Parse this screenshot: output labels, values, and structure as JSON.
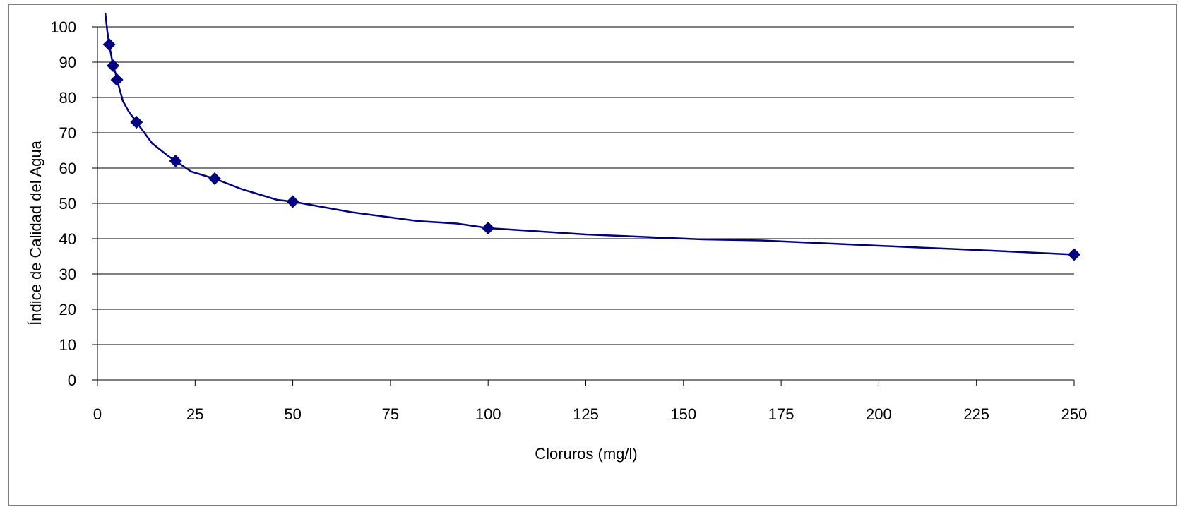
{
  "chart_data": {
    "type": "scatter",
    "title": "",
    "xlabel": "Cloruros (mg/l)",
    "ylabel": "Índice de  Calidad del Agua",
    "xlim": [
      0,
      250
    ],
    "ylim": [
      0,
      100
    ],
    "x_ticks": [
      0,
      25,
      50,
      75,
      100,
      125,
      150,
      175,
      200,
      225,
      250
    ],
    "y_ticks": [
      0,
      10,
      20,
      30,
      40,
      50,
      60,
      70,
      80,
      90,
      100
    ],
    "grid": "horizontal",
    "legend": "none",
    "series": [
      {
        "marker": "diamond",
        "color": "#000080",
        "points": [
          {
            "x": 3,
            "y": 95
          },
          {
            "x": 4,
            "y": 89
          },
          {
            "x": 5,
            "y": 85
          },
          {
            "x": 10,
            "y": 73
          },
          {
            "x": 20,
            "y": 62
          },
          {
            "x": 30,
            "y": 57
          },
          {
            "x": 50,
            "y": 50.5
          },
          {
            "x": 100,
            "y": 43
          },
          {
            "x": 250,
            "y": 35.5
          }
        ],
        "curve": [
          {
            "x": 2,
            "y": 104
          },
          {
            "x": 2.5,
            "y": 99
          },
          {
            "x": 3,
            "y": 95
          },
          {
            "x": 3.5,
            "y": 92
          },
          {
            "x": 4,
            "y": 89
          },
          {
            "x": 4.6,
            "y": 87
          },
          {
            "x": 5,
            "y": 85
          },
          {
            "x": 6.5,
            "y": 79
          },
          {
            "x": 8,
            "y": 76
          },
          {
            "x": 10,
            "y": 73
          },
          {
            "x": 14,
            "y": 67
          },
          {
            "x": 18,
            "y": 63.5
          },
          {
            "x": 20,
            "y": 62
          },
          {
            "x": 24,
            "y": 59
          },
          {
            "x": 30,
            "y": 57
          },
          {
            "x": 37,
            "y": 54
          },
          {
            "x": 46,
            "y": 51
          },
          {
            "x": 50,
            "y": 50.5
          },
          {
            "x": 65,
            "y": 47.5
          },
          {
            "x": 82,
            "y": 45
          },
          {
            "x": 92,
            "y": 44.3
          },
          {
            "x": 100,
            "y": 43
          },
          {
            "x": 125,
            "y": 41.2
          },
          {
            "x": 155,
            "y": 39.8
          },
          {
            "x": 170,
            "y": 39.5
          },
          {
            "x": 200,
            "y": 38
          },
          {
            "x": 225,
            "y": 36.8
          },
          {
            "x": 250,
            "y": 35.5
          }
        ]
      }
    ]
  }
}
